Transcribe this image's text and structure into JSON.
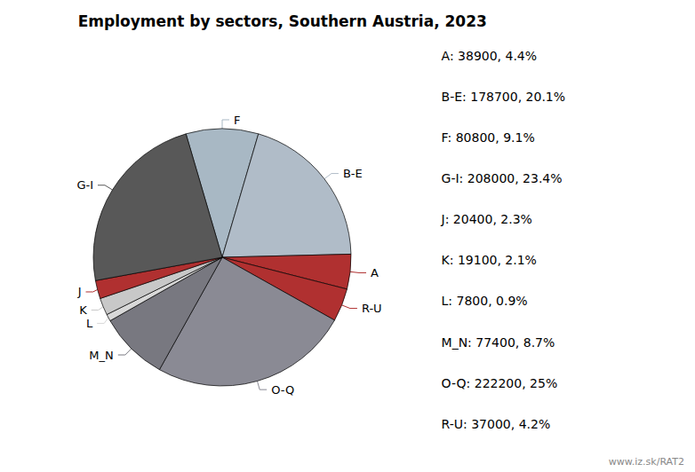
{
  "chart_data": {
    "type": "pie",
    "title": "Employment by sectors, Southern Austria, 2023",
    "categories": [
      "F",
      "B-E",
      "A",
      "R-U",
      "O-Q",
      "M_N",
      "L",
      "K",
      "J",
      "G-I"
    ],
    "values": [
      80800,
      178700,
      38900,
      37000,
      222200,
      77400,
      7800,
      19100,
      20400,
      208000
    ],
    "colors": [
      "#a8b8c4",
      "#b0bcc8",
      "#b03030",
      "#b03030",
      "#8a8a94",
      "#787880",
      "#d8d8d8",
      "#c8c8c8",
      "#b03030",
      "#585858"
    ],
    "annotations": [
      "A: 38900, 4.4%",
      "B-E: 178700, 20.1%",
      "F: 80800, 9.1%",
      "G-I: 208000, 23.4%",
      "J: 20400, 2.3%",
      "K: 19100, 2.1%",
      "L: 7800, 0.9%",
      "M_N: 77400, 8.7%",
      "O-Q: 222200, 25%",
      "R-U: 37000, 4.2%"
    ],
    "caption": "www.iz.sk/RAT2"
  }
}
